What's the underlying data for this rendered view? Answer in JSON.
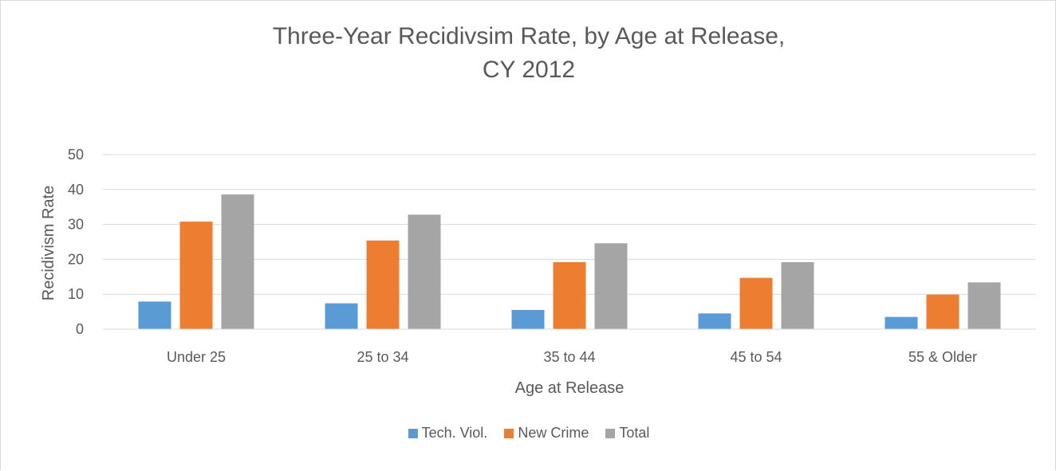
{
  "chart_data": {
    "type": "bar",
    "title": "Three-Year Recidivsim Rate, by Age at Release,",
    "title_line2": "CY 2012",
    "xlabel": "Age at Release",
    "ylabel": "Recidivism Rate",
    "categories": [
      "Under 25",
      "25 to 34",
      "35 to 44",
      "45 to 54",
      "55 & Older"
    ],
    "series": [
      {
        "name": "Tech. Viol.",
        "color": "#5b9bd5",
        "values": [
          7.9,
          7.4,
          5.5,
          4.5,
          3.5
        ]
      },
      {
        "name": "New Crime",
        "color": "#ed7d31",
        "values": [
          30.8,
          25.4,
          19.2,
          14.7,
          9.9
        ]
      },
      {
        "name": "Total",
        "color": "#a5a5a5",
        "values": [
          38.6,
          32.8,
          24.6,
          19.2,
          13.4
        ]
      }
    ],
    "ylim": [
      0,
      50
    ],
    "yticks": [
      "0",
      "10",
      "20",
      "30",
      "40",
      "50"
    ],
    "grid": true,
    "legend_position": "bottom"
  }
}
